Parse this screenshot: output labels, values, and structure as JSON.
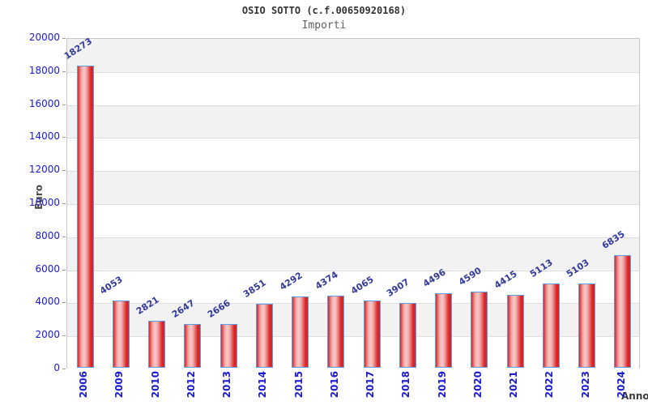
{
  "chart_data": {
    "type": "bar",
    "title": "OSIO SOTTO (c.f.00650920168)",
    "subtitle": "Importi",
    "xlabel": "Anno",
    "ylabel": "Euro",
    "categories": [
      "2006",
      "2009",
      "2010",
      "2012",
      "2013",
      "2014",
      "2015",
      "2016",
      "2017",
      "2018",
      "2019",
      "2020",
      "2021",
      "2022",
      "2023",
      "2024"
    ],
    "values": [
      18273,
      4053,
      2821,
      2647,
      2666,
      3851,
      4292,
      4374,
      4065,
      3907,
      4496,
      4590,
      4415,
      5113,
      5103,
      6835
    ],
    "ylim": [
      0,
      20000
    ],
    "ytick_step": 2000,
    "grid": "horizontal-bands",
    "legend": "none",
    "colors": {
      "bar_fill_edge": "#d92525",
      "bar_fill_mid": "#f2abab",
      "bar_fill_highlight": "#f9c9c9",
      "bar_border": "#5f9de4",
      "tick_label_blue": "#1a1ace",
      "value_label_blue": "#333a99",
      "band_gray": "#f2f2f2",
      "band_white": "#ffffff",
      "plot_border": "#c6c6c6",
      "title_color": "#333333",
      "subtitle_color": "#606060"
    }
  }
}
